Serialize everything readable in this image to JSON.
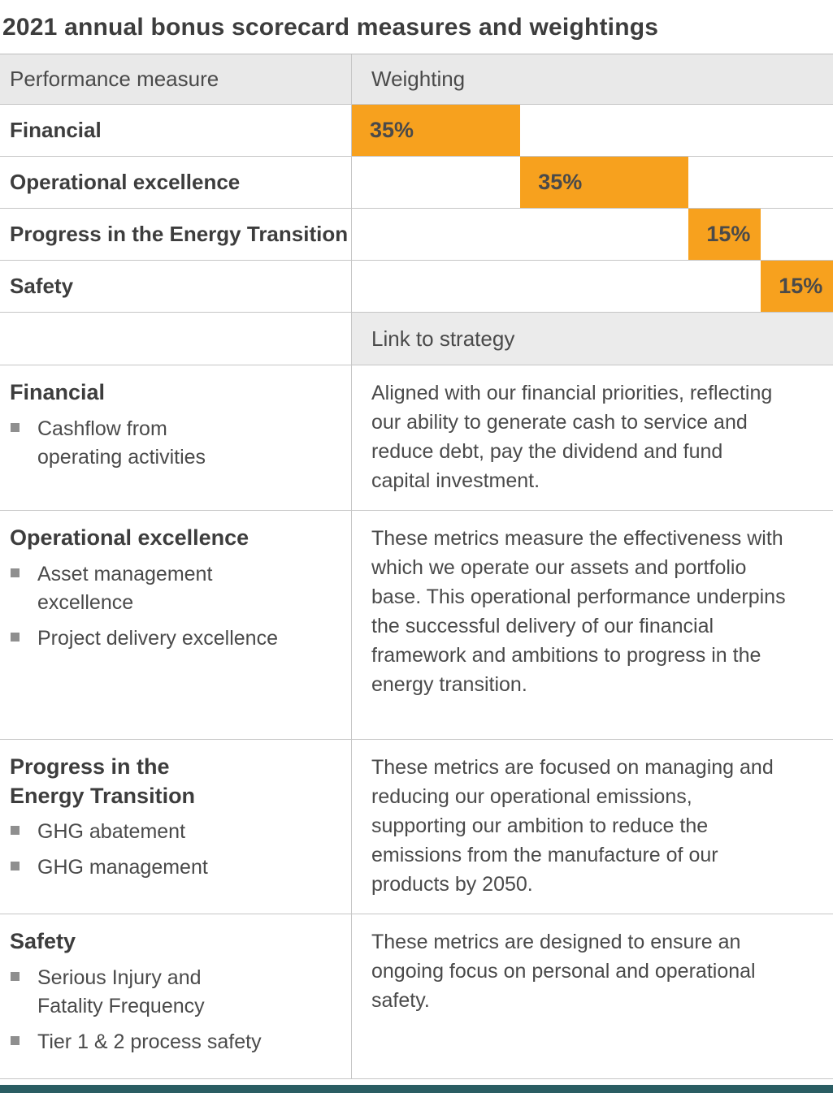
{
  "title": "2021 annual bonus scorecard measures and weightings",
  "colors": {
    "accent_orange": "#f7a11e",
    "header_bg": "#e9e9e9",
    "text_dark": "#3d3d3d",
    "text_body": "#4a4a4a",
    "border": "#c6c6c6",
    "bullet": "#8f8f8f",
    "footer_bar": "#2a5d63"
  },
  "table_headers": {
    "performance": "Performance measure",
    "weighting": "Weighting",
    "link": "Link to strategy"
  },
  "chart_data": {
    "type": "bar",
    "orientation": "horizontal-stacked-waterfall",
    "title": "2021 annual bonus scorecard measures and weightings",
    "categories": [
      "Financial",
      "Operational excellence",
      "Progress in the Energy Transition",
      "Safety"
    ],
    "values": [
      35,
      35,
      15,
      15
    ],
    "offsets": [
      0,
      35,
      70,
      85
    ],
    "unit": "%",
    "xlim": [
      0,
      100
    ],
    "bar_color": "#f7a11e"
  },
  "rows": [
    {
      "measure": "Financial",
      "label": "35%",
      "value": 35,
      "start": 0
    },
    {
      "measure": "Operational excellence",
      "label": "35%",
      "value": 35,
      "start": 35
    },
    {
      "measure": "Progress in the Energy Transition",
      "label": "15%",
      "value": 15,
      "start": 70
    },
    {
      "measure": "Safety",
      "label": "15%",
      "value": 15,
      "start": 85
    }
  ],
  "details": [
    {
      "heading": "Financial",
      "bullets": {
        "0": "Cashflow from\noperating activities"
      },
      "strategy": "Aligned with our financial priorities, reflecting our ability to generate cash to service and reduce debt, pay the dividend and fund capital investment."
    },
    {
      "heading": "Operational excellence",
      "bullets": {
        "0": "Asset management\nexcellence",
        "1": "Project delivery excellence"
      },
      "strategy": "These metrics measure the effectiveness with which we operate our assets and portfolio base. This operational performance underpins the successful delivery of our financial framework and ambitions to progress in the energy transition."
    },
    {
      "heading": "Progress in the\nEnergy Transition",
      "bullets": {
        "0": "GHG abatement",
        "1": "GHG management"
      },
      "strategy": "These metrics are focused on managing and reducing our operational emissions, supporting our ambition to reduce the emissions from the manufacture of our products by 2050."
    },
    {
      "heading": "Safety",
      "bullets": {
        "0": "Serious Injury and\nFatality Frequency",
        "1": "Tier 1 & 2 process safety"
      },
      "strategy": "These metrics are designed to ensure an ongoing focus on personal and operational safety."
    }
  ]
}
